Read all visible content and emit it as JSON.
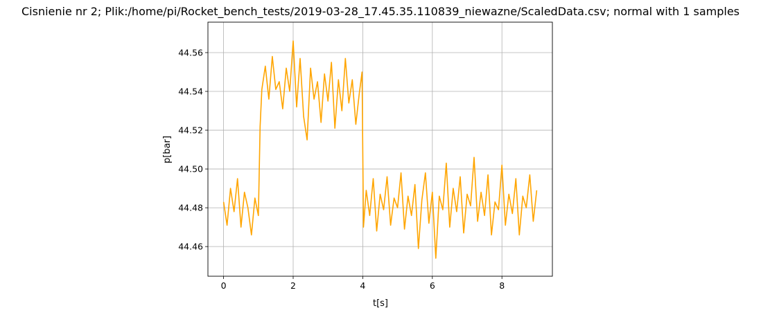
{
  "chart_data": {
    "type": "line",
    "title": "Cisnienie nr 2; Plik:/home/pi/Rocket_bench_tests/2019-03-28_17.45.35.110839_niewazne/ScaledData.csv; normal with 1 samples",
    "xlabel": "t[s]",
    "ylabel": "p[bar]",
    "xlim": [
      -0.45,
      9.45
    ],
    "ylim": [
      44.4447,
      44.5757
    ],
    "x_ticks": [
      0,
      2,
      4,
      6,
      8
    ],
    "x_tick_labels": [
      "0",
      "2",
      "4",
      "6",
      "8"
    ],
    "y_ticks": [
      44.46,
      44.48,
      44.5,
      44.52,
      44.54,
      44.56
    ],
    "y_tick_labels": [
      "44.46",
      "44.48",
      "44.50",
      "44.52",
      "44.54",
      "44.56"
    ],
    "grid": true,
    "legend": "none",
    "line_color": "#ffa500",
    "series": [
      {
        "x": [
          0.0,
          0.1,
          0.2,
          0.3,
          0.4,
          0.5,
          0.6,
          0.7,
          0.8,
          0.9,
          1.0,
          1.05,
          1.1,
          1.2,
          1.3,
          1.4,
          1.5,
          1.6,
          1.7,
          1.8,
          1.9,
          2.0,
          2.1,
          2.2,
          2.3,
          2.4,
          2.5,
          2.6,
          2.7,
          2.8,
          2.9,
          3.0,
          3.1,
          3.2,
          3.3,
          3.4,
          3.5,
          3.6,
          3.7,
          3.8,
          3.9,
          3.98,
          4.02,
          4.1,
          4.2,
          4.3,
          4.4,
          4.5,
          4.6,
          4.7,
          4.8,
          4.9,
          5.0,
          5.1,
          5.2,
          5.3,
          5.4,
          5.5,
          5.6,
          5.7,
          5.8,
          5.9,
          6.0,
          6.1,
          6.2,
          6.3,
          6.4,
          6.5,
          6.6,
          6.7,
          6.8,
          6.9,
          7.0,
          7.1,
          7.2,
          7.3,
          7.4,
          7.5,
          7.6,
          7.7,
          7.8,
          7.9,
          8.0,
          8.1,
          8.2,
          8.3,
          8.4,
          8.5,
          8.6,
          8.7,
          8.8,
          8.9,
          9.0
        ],
        "y": [
          44.483,
          44.471,
          44.49,
          44.478,
          44.495,
          44.47,
          44.488,
          44.48,
          44.466,
          44.485,
          44.476,
          44.522,
          44.541,
          44.553,
          44.536,
          44.558,
          44.541,
          44.545,
          44.531,
          44.552,
          44.54,
          44.566,
          44.532,
          44.557,
          44.527,
          44.515,
          44.552,
          44.536,
          44.545,
          44.524,
          44.549,
          44.535,
          44.555,
          44.521,
          44.546,
          44.53,
          44.557,
          44.534,
          44.546,
          44.523,
          44.539,
          44.55,
          44.47,
          44.489,
          44.476,
          44.495,
          44.468,
          44.487,
          44.479,
          44.496,
          44.471,
          44.485,
          44.48,
          44.498,
          44.469,
          44.486,
          44.476,
          44.492,
          44.459,
          44.484,
          44.498,
          44.472,
          44.488,
          44.454,
          44.486,
          44.479,
          44.503,
          44.47,
          44.49,
          44.478,
          44.496,
          44.467,
          44.487,
          44.481,
          44.506,
          44.473,
          44.488,
          44.476,
          44.497,
          44.466,
          44.483,
          44.479,
          44.502,
          44.471,
          44.487,
          44.477,
          44.495,
          44.466,
          44.486,
          44.48,
          44.497,
          44.473,
          44.489
        ]
      }
    ]
  }
}
